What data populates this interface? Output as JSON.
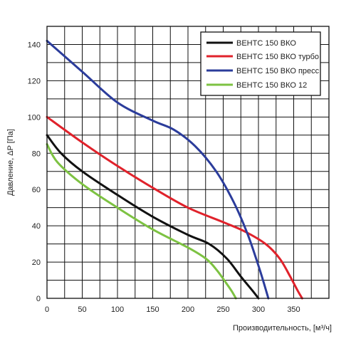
{
  "chart_data": {
    "type": "line",
    "xlabel": "Производительность, [м³/ч]",
    "ylabel": "Давление, ΔP [Па]",
    "xlim": [
      0,
      400
    ],
    "ylim": [
      0,
      150
    ],
    "x_ticks": [
      "0",
      "50",
      "100",
      "150",
      "200",
      "250",
      "300",
      "350"
    ],
    "y_ticks": [
      "0",
      "20",
      "40",
      "60",
      "80",
      "100",
      "120",
      "140"
    ],
    "grid": true,
    "legend_position": "top-right",
    "series": [
      {
        "name": "ВЕНТС 150 ВКО",
        "color": "#111111",
        "points": [
          [
            0,
            90
          ],
          [
            20,
            80
          ],
          [
            50,
            70
          ],
          [
            100,
            57
          ],
          [
            150,
            45
          ],
          [
            200,
            35
          ],
          [
            230,
            30
          ],
          [
            255,
            22
          ],
          [
            275,
            12
          ],
          [
            292,
            4
          ],
          [
            300,
            0
          ]
        ]
      },
      {
        "name": "ВЕНТС 150 ВКО турбо",
        "color": "#e0222b",
        "points": [
          [
            0,
            100
          ],
          [
            50,
            86
          ],
          [
            100,
            73
          ],
          [
            150,
            61
          ],
          [
            200,
            50
          ],
          [
            250,
            42
          ],
          [
            280,
            37
          ],
          [
            310,
            30
          ],
          [
            330,
            22
          ],
          [
            345,
            12
          ],
          [
            356,
            4
          ],
          [
            362,
            0
          ]
        ]
      },
      {
        "name": "ВЕНТС 150 ВКО пресс",
        "color": "#2b3c9b",
        "points": [
          [
            0,
            142
          ],
          [
            50,
            125
          ],
          [
            100,
            108
          ],
          [
            150,
            98
          ],
          [
            180,
            93
          ],
          [
            210,
            84
          ],
          [
            240,
            70
          ],
          [
            265,
            53
          ],
          [
            285,
            35
          ],
          [
            300,
            18
          ],
          [
            308,
            8
          ],
          [
            314,
            0
          ]
        ]
      },
      {
        "name": "ВЕНТС 150 ВКО 12",
        "color": "#7dc242",
        "points": [
          [
            0,
            85
          ],
          [
            15,
            75
          ],
          [
            50,
            63
          ],
          [
            100,
            50
          ],
          [
            150,
            38
          ],
          [
            200,
            28
          ],
          [
            225,
            22
          ],
          [
            240,
            16
          ],
          [
            255,
            8
          ],
          [
            262,
            4
          ],
          [
            268,
            0
          ]
        ]
      }
    ]
  }
}
